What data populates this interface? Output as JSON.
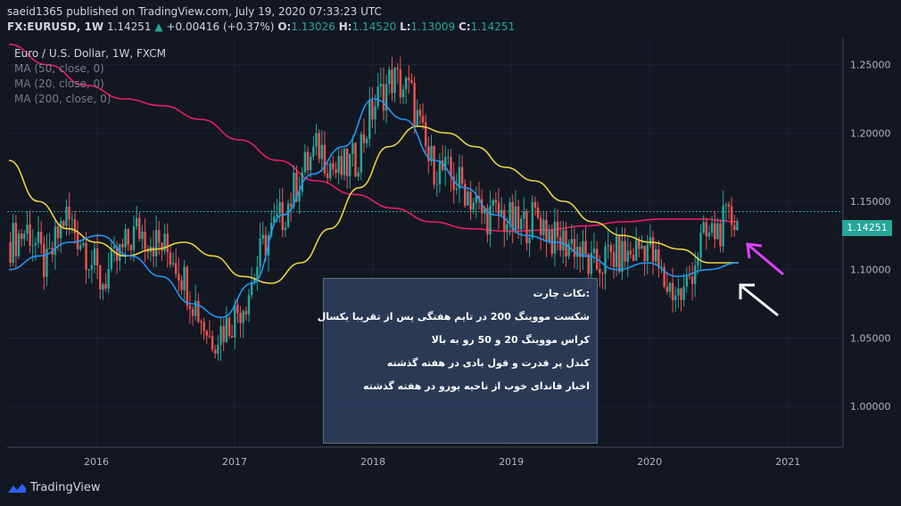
{
  "header": {
    "published_line": "saeid1365 published on TradingView.com, July 19, 2020 07:33:23 UTC",
    "symbol": "FX:EURUSD, 1W",
    "price": "1.14251",
    "change_arrow": "▲",
    "change": "+0.00416 (+0.37%)",
    "o_label": "O:",
    "o_value": "1.13026",
    "h_label": "H:",
    "h_value": "1.14520",
    "l_label": "L:",
    "l_value": "1.13009",
    "c_label": "C:",
    "c_value": "1.14251"
  },
  "legend": {
    "title": "Euro / U.S. Dollar, 1W, FXCM",
    "ma1": "MA (50, close, 0)",
    "ma2": "MA (20, close, 0)",
    "ma3": "MA (200, close, 0)"
  },
  "note": {
    "title": ":نکات چارت",
    "line1": "شکست مووینگ 200 در تایم هفتگی پس از تقریبا یکسال",
    "line2": "کراس مووینگ 20 و 50 رو به بالا",
    "line3": "کندل پر قدرت و قول بادی در هفته گذشته",
    "line4": "اخبار فاندای خوب از ناحیه یورو در هفته گذشته"
  },
  "price_tag": "1.14251",
  "footer": {
    "brand": "TradingView"
  },
  "colors": {
    "bg": "#131722",
    "up": "#26a69a",
    "down": "#ef5350",
    "ma50": "#e8d33f",
    "ma20": "#2196f3",
    "ma200": "#e91e63",
    "arrow_pink": "#e040fb",
    "arrow_white": "#ffffff"
  },
  "chart_data": {
    "type": "candlestick",
    "x_ticks": [
      "2016",
      "2017",
      "2018",
      "2019",
      "2020",
      "2021"
    ],
    "y_ticks": [
      "1.25000",
      "1.20000",
      "1.15000",
      "1.10000",
      "1.05000",
      "1.00000"
    ],
    "ylim": [
      0.97,
      1.27
    ],
    "last_price": 1.14251,
    "series": [
      {
        "name": "MA (50, close, 0)",
        "values": [
          1.18,
          1.15,
          1.13,
          1.12,
          1.11,
          1.115,
          1.12,
          1.11,
          1.095,
          1.09,
          1.105,
          1.13,
          1.16,
          1.19,
          1.205,
          1.2,
          1.19,
          1.175,
          1.165,
          1.15,
          1.135,
          1.125,
          1.12,
          1.115,
          1.105,
          1.105
        ]
      },
      {
        "name": "MA (20, close, 0)",
        "values": [
          1.1,
          1.11,
          1.12,
          1.125,
          1.11,
          1.095,
          1.075,
          1.065,
          1.09,
          1.14,
          1.17,
          1.19,
          1.225,
          1.21,
          1.18,
          1.16,
          1.14,
          1.125,
          1.12,
          1.11,
          1.1,
          1.105,
          1.095,
          1.1,
          1.105
        ]
      },
      {
        "name": "MA (200, close, 0)",
        "values": [
          1.265,
          1.25,
          1.235,
          1.225,
          1.22,
          1.21,
          1.195,
          1.18,
          1.165,
          1.155,
          1.145,
          1.135,
          1.13,
          1.128,
          1.129,
          1.132,
          1.135,
          1.137,
          1.137,
          1.135
        ]
      }
    ],
    "closes": [
      1.12,
      1.13,
      1.1,
      1.14,
      1.12,
      1.09,
      1.11,
      1.13,
      1.12,
      1.11,
      1.08,
      1.05,
      1.06,
      1.08,
      1.12,
      1.14,
      1.17,
      1.19,
      1.17,
      1.18,
      1.22,
      1.24,
      1.23,
      1.18,
      1.17,
      1.16,
      1.14,
      1.14,
      1.13,
      1.14,
      1.12,
      1.12,
      1.1,
      1.11,
      1.11,
      1.12,
      1.09,
      1.08,
      1.12,
      1.13,
      1.14
    ]
  }
}
